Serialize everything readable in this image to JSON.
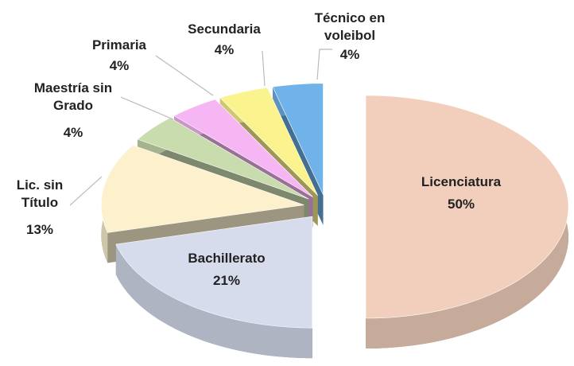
{
  "chart_data": {
    "type": "pie",
    "categories": [
      "Licenciatura",
      "Bachillerato",
      "Lic. sin Título",
      "Maestría sin Grado",
      "Primaria",
      "Secundaria",
      "Técnico en voleibol"
    ],
    "values": [
      50,
      21,
      13,
      4,
      4,
      4,
      4
    ],
    "value_labels": [
      "50%",
      "21%",
      "13%",
      "4%",
      "4%",
      "4%",
      "4%"
    ],
    "colors": [
      "#f2cfbc",
      "#d6dcec",
      "#fcf0cd",
      "#c9dcae",
      "#f6b6f3",
      "#fbf38e",
      "#70b3ea"
    ]
  }
}
